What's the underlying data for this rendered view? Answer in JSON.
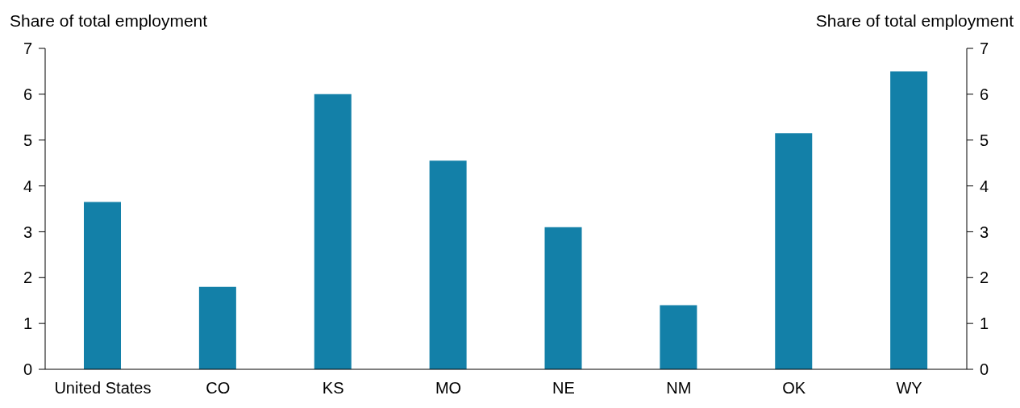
{
  "chart_data": {
    "type": "bar",
    "categories": [
      "United States",
      "CO",
      "KS",
      "MO",
      "NE",
      "NM",
      "OK",
      "WY"
    ],
    "values": [
      3.65,
      1.8,
      6.0,
      4.55,
      3.1,
      1.4,
      5.15,
      6.5
    ],
    "color": "#1380a8",
    "ylabel": "Share of total employment",
    "y2label": "Share of total employment",
    "ylim": [
      0,
      7
    ],
    "yticks": [
      0,
      1,
      2,
      3,
      4,
      5,
      6,
      7
    ],
    "y2lim": [
      0,
      7
    ],
    "y2ticks": [
      0,
      1,
      2,
      3,
      4,
      5,
      6,
      7
    ],
    "grid": false,
    "legend": false
  }
}
